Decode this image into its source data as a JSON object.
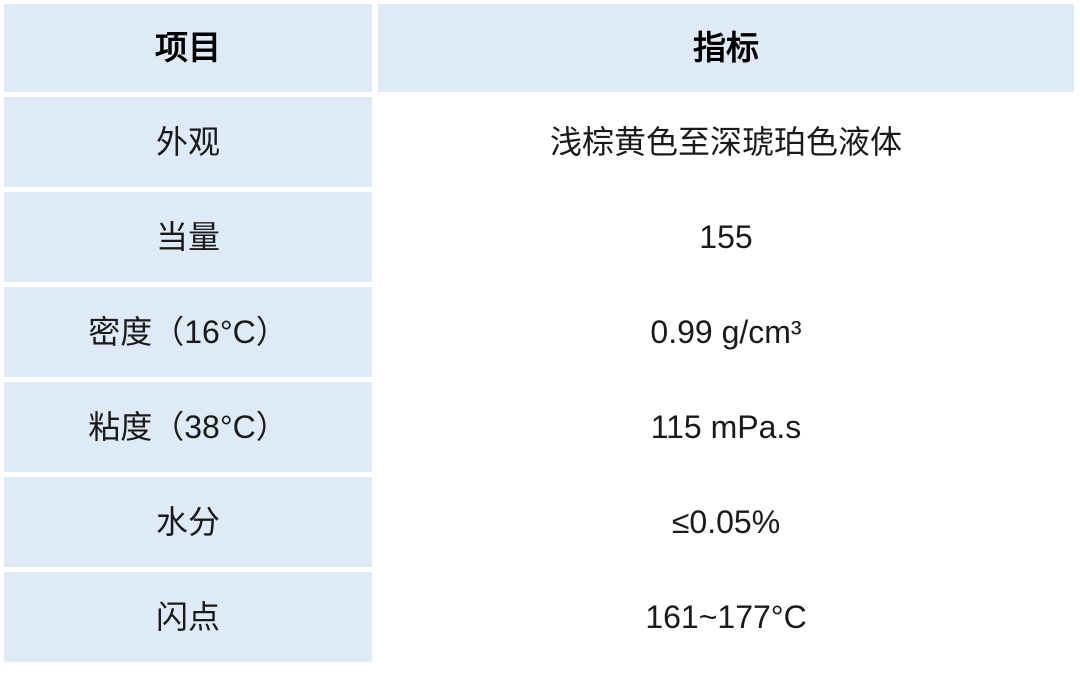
{
  "table": {
    "headers": [
      "项目",
      "指标"
    ],
    "rows": [
      {
        "item": "外观",
        "value": "浅棕黄色至深琥珀色液体"
      },
      {
        "item": "当量",
        "value": "155"
      },
      {
        "item": "密度（16°C）",
        "value": "0.99 g/cm³"
      },
      {
        "item": "粘度（38°C）",
        "value": "115 mPa.s"
      },
      {
        "item": "水分",
        "value": "≤0.05%"
      },
      {
        "item": "闪点",
        "value": "161~177°C"
      }
    ],
    "colors": {
      "cell_fill": "#deebf7",
      "divider": "#ffffff",
      "header_text": "#000000",
      "body_text": "#1a1a1a"
    }
  }
}
